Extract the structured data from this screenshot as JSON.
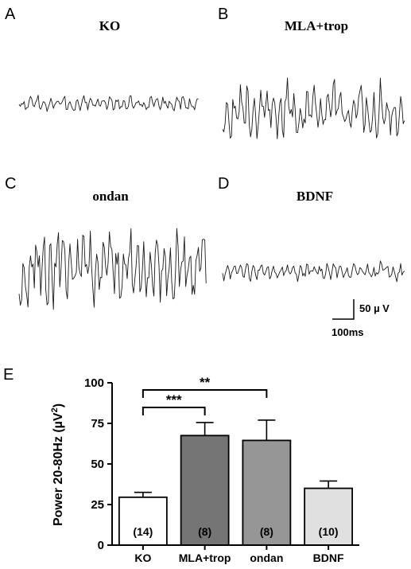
{
  "panels": [
    {
      "letter": "A",
      "title": "KO",
      "amplitude": 0.35,
      "seed": 11
    },
    {
      "letter": "B",
      "title": "MLA+trop",
      "amplitude": 0.85,
      "seed": 23
    },
    {
      "letter": "C",
      "title": "ondan",
      "amplitude": 1.0,
      "seed": 37
    },
    {
      "letter": "D",
      "title": "BDNF",
      "amplitude": 0.45,
      "seed": 53
    }
  ],
  "scale_bar": {
    "voltage_label": "50 µ V",
    "time_label": "100ms"
  },
  "panel_e_letter": "E",
  "chart_data": {
    "type": "bar",
    "categories": [
      "KO",
      "MLA+trop",
      "ondan",
      "BDNF"
    ],
    "values": [
      29.5,
      67.5,
      64.5,
      35
    ],
    "errors": [
      3,
      8,
      12.5,
      4.5
    ],
    "n_labels": [
      "(14)",
      "(8)",
      "(8)",
      "(10)"
    ],
    "bar_colors": [
      "#ffffff",
      "#757575",
      "#969696",
      "#e0e0e0"
    ],
    "ylabel": "Power 20-80Hz (µV²)",
    "ylabel_main": "Power 20-80Hz (µV",
    "ylabel_sup": "2",
    "ylabel_end": ")",
    "ylim": [
      0,
      100
    ],
    "yticks": [
      0,
      25,
      50,
      75,
      100
    ],
    "significance": [
      {
        "from": "KO",
        "to": "MLA+trop",
        "label": "***"
      },
      {
        "from": "KO",
        "to": "ondan",
        "label": "**"
      }
    ]
  }
}
